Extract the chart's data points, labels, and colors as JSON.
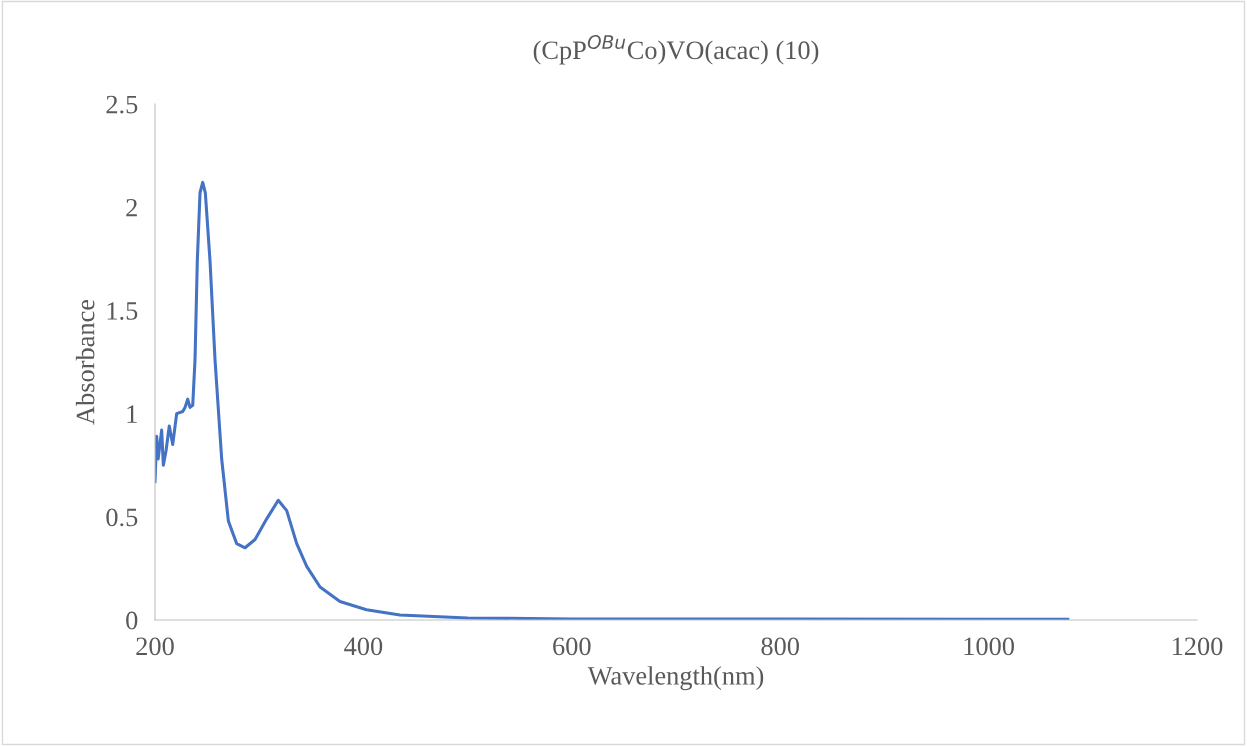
{
  "chart_data": {
    "type": "line",
    "title": "(CpP$^{OBu}$Co)VO(acac) (10)",
    "xlabel": "Wavelength(nm)",
    "ylabel": "Absorbance",
    "xlim": [
      200,
      1200
    ],
    "xticks": [
      200,
      400,
      600,
      800,
      1000,
      1200
    ],
    "ylim": [
      0,
      2.5
    ],
    "yticks": [
      0,
      0.5,
      1,
      1.5,
      2,
      2.5
    ],
    "grid": false,
    "legend": false,
    "marker": "none",
    "line_style": "solid",
    "series": [
      {
        "color": "#4472c4",
        "x": [
          200,
          201.6,
          203,
          206.4,
          208,
          210.6,
          213.7,
          217,
          220.8,
          226.6,
          228.8,
          231.4,
          233.6,
          236.2,
          238.4,
          240.6,
          243.2,
          245.8,
          248.3,
          252.8,
          257.6,
          264,
          270.4,
          278.4,
          286.4,
          296,
          307.2,
          318.3,
          326.4,
          336,
          345.6,
          358.4,
          377.5,
          403,
          435,
          500,
          600,
          800,
          1000,
          1076
        ],
        "values": [
          0.67,
          0.89,
          0.78,
          0.92,
          0.75,
          0.82,
          0.94,
          0.85,
          1.0,
          1.01,
          1.03,
          1.07,
          1.03,
          1.04,
          1.26,
          1.74,
          2.07,
          2.12,
          2.07,
          1.74,
          1.26,
          0.78,
          0.48,
          0.37,
          0.35,
          0.39,
          0.49,
          0.58,
          0.53,
          0.37,
          0.26,
          0.16,
          0.09,
          0.05,
          0.024,
          0.01,
          0.005,
          0.005,
          0.004,
          0.004
        ]
      }
    ]
  }
}
